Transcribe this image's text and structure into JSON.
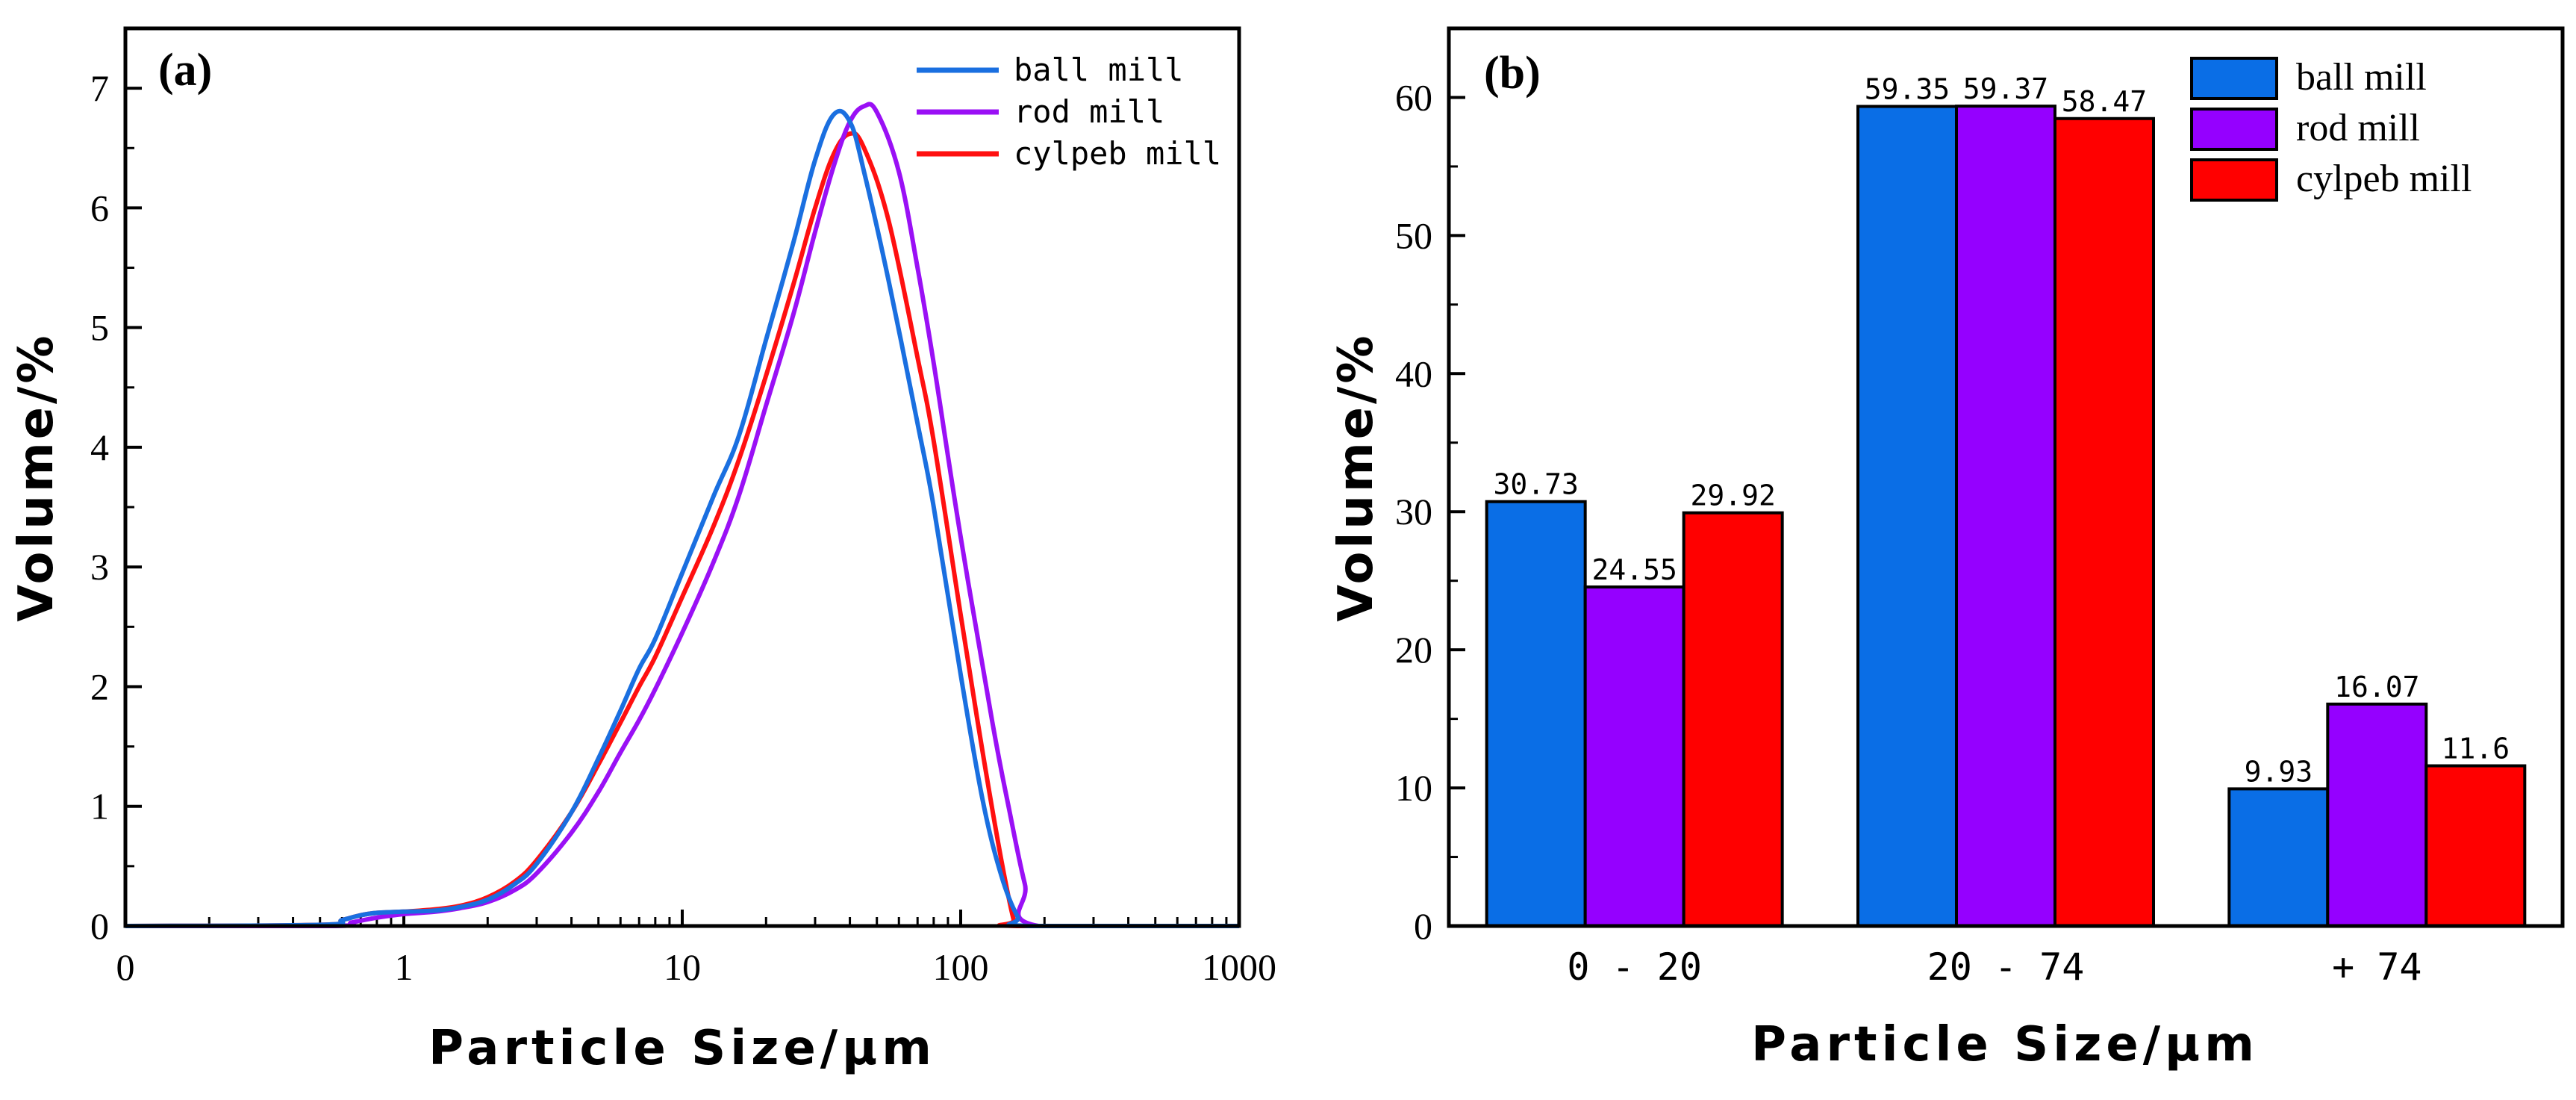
{
  "chart_data": [
    {
      "type": "line",
      "panel_label": "(a)",
      "xlabel": "Particle Size/μm",
      "ylabel": "Volume/%",
      "xscale": "log",
      "xlim": [
        0.1,
        1000
      ],
      "ylim": [
        0,
        7.5
      ],
      "x_ticks": [
        0.1,
        1,
        10,
        100,
        1000
      ],
      "x_tick_labels": [
        "0",
        "1",
        "10",
        "100",
        "1000"
      ],
      "y_ticks": [
        0,
        1,
        2,
        3,
        4,
        5,
        6,
        7
      ],
      "y_tick_labels": [
        "0",
        "1",
        "2",
        "3",
        "4",
        "5",
        "6",
        "7"
      ],
      "legend_position": "top-right",
      "series": [
        {
          "name": "ball mill",
          "color": "#1a6fe0",
          "points": [
            [
              0.1,
              0
            ],
            [
              0.5,
              0.01
            ],
            [
              0.6,
              0.05
            ],
            [
              0.7,
              0.09
            ],
            [
              0.8,
              0.11
            ],
            [
              1,
              0.12
            ],
            [
              1.3,
              0.13
            ],
            [
              1.6,
              0.16
            ],
            [
              2,
              0.22
            ],
            [
              2.5,
              0.35
            ],
            [
              3,
              0.52
            ],
            [
              4,
              0.95
            ],
            [
              5,
              1.4
            ],
            [
              6,
              1.8
            ],
            [
              7,
              2.15
            ],
            [
              8,
              2.4
            ],
            [
              10,
              2.95
            ],
            [
              13,
              3.6
            ],
            [
              16,
              4.1
            ],
            [
              20,
              4.9
            ],
            [
              25,
              5.7
            ],
            [
              30,
              6.4
            ],
            [
              35,
              6.78
            ],
            [
              40,
              6.72
            ],
            [
              45,
              6.3
            ],
            [
              55,
              5.4
            ],
            [
              70,
              4.2
            ],
            [
              80,
              3.5
            ],
            [
              100,
              2.1
            ],
            [
              120,
              1.05
            ],
            [
              140,
              0.42
            ],
            [
              160,
              0.08
            ],
            [
              175,
              0.0
            ],
            [
              1000,
              0
            ]
          ]
        },
        {
          "name": "rod mill",
          "color": "#9a10f5",
          "points": [
            [
              0.1,
              0
            ],
            [
              0.55,
              0.0
            ],
            [
              0.65,
              0.03
            ],
            [
              0.8,
              0.07
            ],
            [
              1,
              0.1
            ],
            [
              1.3,
              0.12
            ],
            [
              1.6,
              0.15
            ],
            [
              2,
              0.2
            ],
            [
              2.5,
              0.3
            ],
            [
              3,
              0.44
            ],
            [
              4,
              0.78
            ],
            [
              5,
              1.12
            ],
            [
              6,
              1.45
            ],
            [
              7,
              1.72
            ],
            [
              8,
              1.98
            ],
            [
              10,
              2.45
            ],
            [
              13,
              3.05
            ],
            [
              16,
              3.6
            ],
            [
              20,
              4.35
            ],
            [
              25,
              5.1
            ],
            [
              30,
              5.8
            ],
            [
              35,
              6.35
            ],
            [
              40,
              6.72
            ],
            [
              45,
              6.85
            ],
            [
              50,
              6.8
            ],
            [
              60,
              6.3
            ],
            [
              70,
              5.5
            ],
            [
              80,
              4.7
            ],
            [
              100,
              3.25
            ],
            [
              130,
              1.7
            ],
            [
              150,
              0.95
            ],
            [
              170,
              0.35
            ],
            [
              190,
              0.0
            ],
            [
              1000,
              0
            ]
          ]
        },
        {
          "name": "cylpeb mill",
          "color": "#ff1010",
          "points": [
            [
              0.1,
              0
            ],
            [
              0.5,
              0.01
            ],
            [
              0.6,
              0.05
            ],
            [
              0.7,
              0.09
            ],
            [
              0.8,
              0.11
            ],
            [
              1,
              0.12
            ],
            [
              1.3,
              0.14
            ],
            [
              1.6,
              0.17
            ],
            [
              2,
              0.24
            ],
            [
              2.5,
              0.37
            ],
            [
              3,
              0.55
            ],
            [
              4,
              0.95
            ],
            [
              5,
              1.35
            ],
            [
              6,
              1.7
            ],
            [
              7,
              2.0
            ],
            [
              8,
              2.25
            ],
            [
              10,
              2.75
            ],
            [
              13,
              3.35
            ],
            [
              16,
              3.9
            ],
            [
              20,
              4.6
            ],
            [
              25,
              5.35
            ],
            [
              30,
              6.0
            ],
            [
              35,
              6.45
            ],
            [
              40,
              6.62
            ],
            [
              45,
              6.5
            ],
            [
              55,
              5.9
            ],
            [
              70,
              4.75
            ],
            [
              80,
              4.05
            ],
            [
              100,
              2.6
            ],
            [
              120,
              1.45
            ],
            [
              140,
              0.55
            ],
            [
              155,
              0.05
            ],
            [
              160,
              0.0
            ],
            [
              1000,
              0
            ]
          ]
        }
      ]
    },
    {
      "type": "bar",
      "panel_label": "(b)",
      "xlabel": "Particle Size/μm",
      "ylabel": "Volume/%",
      "ylim": [
        0,
        65
      ],
      "y_ticks": [
        0,
        10,
        20,
        30,
        40,
        50,
        60
      ],
      "y_tick_labels": [
        "0",
        "10",
        "20",
        "30",
        "40",
        "50",
        "60"
      ],
      "categories": [
        "0 - 20",
        "20 - 74",
        "+ 74"
      ],
      "legend_position": "top-right",
      "series": [
        {
          "name": "ball mill",
          "color": "#0a6ee6",
          "values": [
            30.73,
            59.35,
            9.93
          ],
          "labels": [
            "30.73",
            "59.35",
            "9.93"
          ]
        },
        {
          "name": "rod mill",
          "color": "#9500ff",
          "values": [
            24.55,
            59.37,
            16.07
          ],
          "labels": [
            "24.55",
            "59.37",
            "16.07"
          ]
        },
        {
          "name": "cylpeb mill",
          "color": "#ff0000",
          "values": [
            29.92,
            58.47,
            11.6
          ],
          "labels": [
            "29.92",
            "58.47",
            "11.6"
          ]
        }
      ]
    }
  ]
}
